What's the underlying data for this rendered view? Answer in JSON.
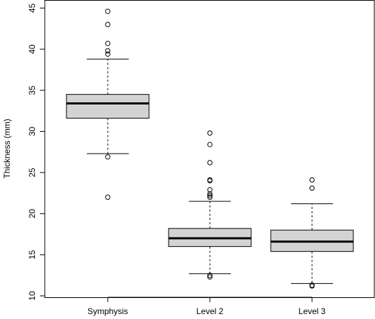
{
  "chart_data": {
    "type": "boxplot",
    "title": "",
    "xlabel": "",
    "ylabel": "Thickness (mm)",
    "ylim": [
      10,
      45
    ],
    "yticks": [
      10,
      15,
      20,
      25,
      30,
      35,
      40,
      45
    ],
    "categories": [
      "Symphysis",
      "Level 2",
      "Level 3"
    ],
    "box_fill": "#d3d3d3",
    "line_color": "#000000",
    "grid": false,
    "legend": "none",
    "boxes": [
      {
        "name": "Symphysis",
        "whisker_low": 27.3,
        "q1": 31.6,
        "median": 33.4,
        "q3": 34.5,
        "whisker_high": 38.8,
        "outliers": [
          44.6,
          43.0,
          40.7,
          39.8,
          39.4,
          26.9,
          22.0
        ]
      },
      {
        "name": "Level 2",
        "whisker_low": 12.7,
        "q1": 16.0,
        "median": 17.0,
        "q3": 18.2,
        "whisker_high": 21.5,
        "outliers": [
          29.8,
          28.4,
          26.2,
          24.1,
          24.0,
          22.9,
          22.4,
          22.2,
          22.0,
          12.5,
          12.3
        ]
      },
      {
        "name": "Level 3",
        "whisker_low": 11.5,
        "q1": 15.4,
        "median": 16.6,
        "q3": 18.0,
        "whisker_high": 21.2,
        "outliers": [
          24.1,
          23.1,
          11.3,
          11.2
        ]
      }
    ]
  }
}
